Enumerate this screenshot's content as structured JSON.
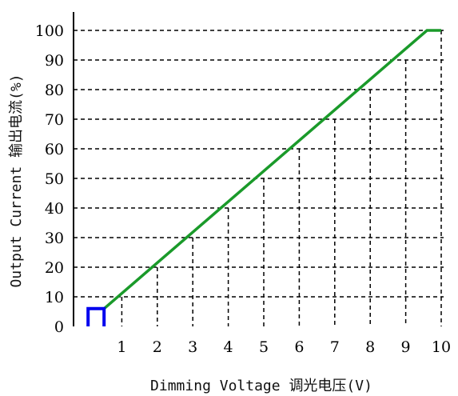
{
  "chart_data": {
    "type": "line",
    "title": "",
    "xlabel": "Dimming Voltage 调光电压(V)",
    "ylabel": "Output Current 输出电流(%)",
    "xlim": [
      0,
      10.4
    ],
    "ylim": [
      0,
      100
    ],
    "x_ticks": [
      "1",
      "2",
      "3",
      "4",
      "5",
      "6",
      "7",
      "8",
      "9",
      "10"
    ],
    "y_ticks": [
      "0",
      "10",
      "20",
      "30",
      "40",
      "50",
      "60",
      "70",
      "80",
      "90",
      "100"
    ],
    "grid": "dashed",
    "series": [
      {
        "color": "#1a9a2a",
        "points": [
          {
            "x": 0.5,
            "y": 6
          },
          {
            "x": 9.6,
            "y": 100
          },
          {
            "x": 10,
            "y": 100
          }
        ]
      },
      {
        "color": "#0000ee",
        "points": [
          {
            "x": 0.05,
            "y": 0
          },
          {
            "x": 0.05,
            "y": 6
          },
          {
            "x": 0.5,
            "y": 6
          },
          {
            "x": 0.5,
            "y": 0
          }
        ]
      }
    ]
  }
}
